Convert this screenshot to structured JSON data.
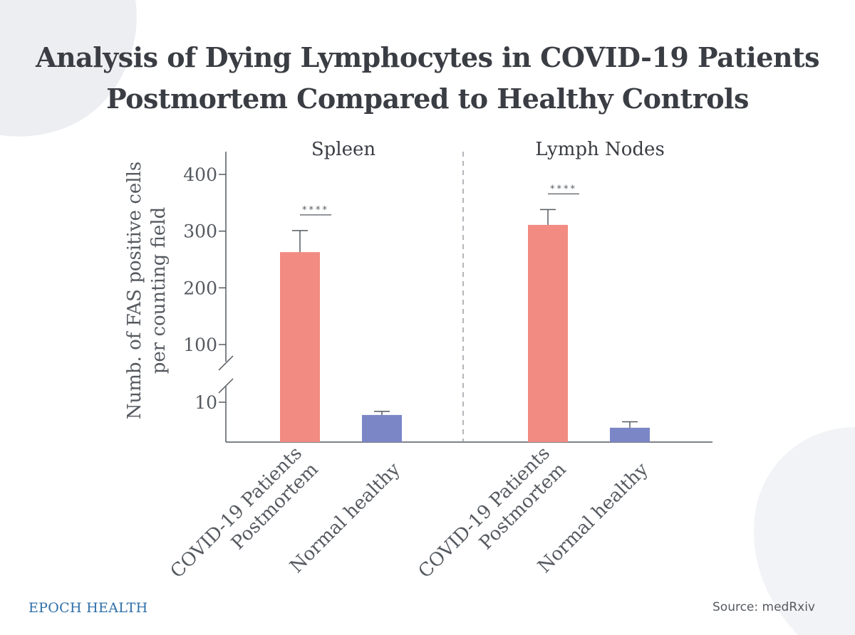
{
  "title_lines": [
    "Analysis of Dying Lymphocytes in COVID-19 Patients",
    "Postmortem Compared to Healthy Controls"
  ],
  "brand": "EPOCH HEALTH",
  "source": "Source: medRxiv",
  "colors": {
    "covid": "#f28b82",
    "healthy": "#7b86c6",
    "axis": "#555a60",
    "text": "#3a3d43",
    "brand": "#2f6fa8"
  },
  "chart_data": {
    "type": "bar",
    "ylabel_lines": [
      "Numb. of FAS positive cells",
      "per counting field"
    ],
    "broken_axis": true,
    "y_ticks_upper": [
      100,
      200,
      300,
      400
    ],
    "y_ticks_lower": [
      10
    ],
    "ylim_lower": [
      0,
      14
    ],
    "ylim_upper": [
      100,
      440
    ],
    "panels": [
      {
        "name": "Spleen",
        "categories": [
          "COVID-19 Patients Postmortem",
          "Normal healthy"
        ],
        "category_label_lines": [
          [
            "COVID-19 Patients",
            "Postmortem"
          ],
          [
            "Normal healthy"
          ]
        ],
        "values": [
          263,
          6.8
        ],
        "errors": [
          38,
          0.9
        ],
        "significance": "****"
      },
      {
        "name": "Lymph Nodes",
        "categories": [
          "COVID-19 Patients Postmortem",
          "Normal healthy"
        ],
        "category_label_lines": [
          [
            "COVID-19 Patients",
            "Postmortem"
          ],
          [
            "Normal healthy"
          ]
        ],
        "values": [
          311,
          3.6
        ],
        "errors": [
          27,
          1.5
        ],
        "significance": "****"
      }
    ]
  }
}
